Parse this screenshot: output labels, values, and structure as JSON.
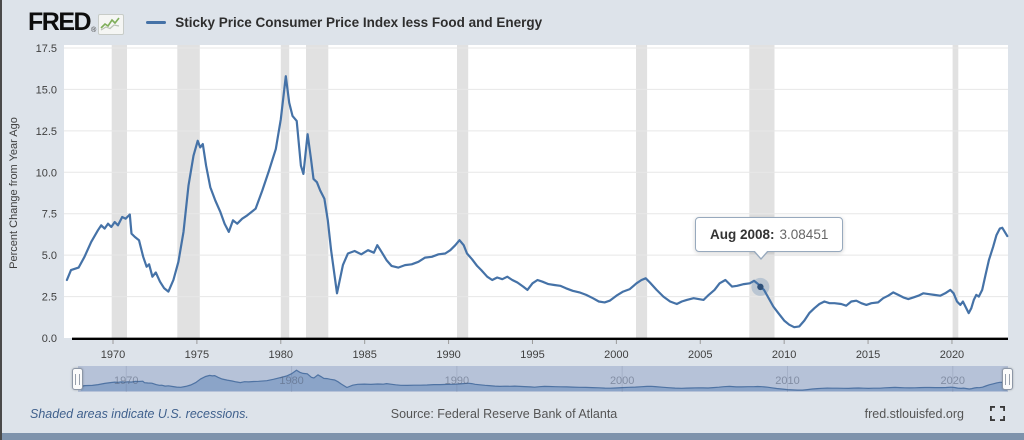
{
  "header": {
    "brand": "FRED",
    "registered_mark": "®",
    "legend_label": "Sticky Price Consumer Price Index less Food and Energy"
  },
  "tooltip": {
    "label": "Aug 2008:",
    "value": "3.08451"
  },
  "footer": {
    "recession_note": "Shaded areas indicate U.S. recessions.",
    "source": "Source: Federal Reserve Bank of Atlanta",
    "site": "fred.stlouisfed.org"
  },
  "colors": {
    "page_bg": "#dde3ea",
    "plot_bg": "#ffffff",
    "series_line": "#4572a7",
    "highlight_dot": "#2d507a",
    "recession_band": "#e1e1e1",
    "gridline": "#e7e7e7",
    "axis_line": "#000000",
    "minimap_bg": "#b6c2d8",
    "minimap_fill": "#8ba4c8",
    "minimap_line": "#4f73a3",
    "link_blue": "#40618d"
  },
  "minimap": {
    "x_labels": [
      1970,
      1980,
      1990,
      2000,
      2010,
      2020
    ]
  },
  "chart_data": {
    "type": "line",
    "title": "Sticky Price Consumer Price Index less Food and Energy",
    "xlabel": "",
    "ylabel": "Percent Change from Year Ago",
    "ylim": [
      0,
      17.5
    ],
    "xlim": [
      1967.08,
      2023.34
    ],
    "y_ticks": [
      0,
      2.5,
      5,
      7.5,
      10,
      12.5,
      15,
      17.5
    ],
    "x_ticks": [
      1970,
      1975,
      1980,
      1985,
      1990,
      1995,
      2000,
      2005,
      2010,
      2015,
      2020
    ],
    "grid": "horizontal",
    "legend_position": "top-header",
    "recessions": [
      [
        1969.92,
        1970.83
      ],
      [
        1973.83,
        1975.17
      ],
      [
        1980.0,
        1980.5
      ],
      [
        1981.5,
        1982.83
      ],
      [
        1990.5,
        1991.17
      ],
      [
        2001.17,
        2001.83
      ],
      [
        2007.92,
        2009.42
      ],
      [
        2020.04,
        2020.38
      ]
    ],
    "highlight": {
      "x": 2008.583,
      "y": 3.08451,
      "date_label": "Aug 2008",
      "value_label": "3.08451"
    },
    "series": [
      {
        "name": "Sticky Price Consumer Price Index less Food and Energy",
        "color": "#4572a7",
        "units": "Percent Change from Year Ago",
        "points": [
          [
            1967.25,
            3.5
          ],
          [
            1967.5,
            4.1
          ],
          [
            1967.95,
            4.25
          ],
          [
            1968.3,
            4.9
          ],
          [
            1968.7,
            5.8
          ],
          [
            1969.1,
            6.5
          ],
          [
            1969.3,
            6.8
          ],
          [
            1969.5,
            6.6
          ],
          [
            1969.7,
            6.9
          ],
          [
            1969.9,
            6.7
          ],
          [
            1970.1,
            7.0
          ],
          [
            1970.3,
            6.8
          ],
          [
            1970.55,
            7.3
          ],
          [
            1970.75,
            7.2
          ],
          [
            1971.0,
            7.45
          ],
          [
            1971.1,
            6.3
          ],
          [
            1971.3,
            6.1
          ],
          [
            1971.55,
            5.9
          ],
          [
            1971.8,
            4.9
          ],
          [
            1972.0,
            4.3
          ],
          [
            1972.15,
            4.45
          ],
          [
            1972.35,
            3.7
          ],
          [
            1972.55,
            3.95
          ],
          [
            1972.8,
            3.4
          ],
          [
            1973.05,
            3.0
          ],
          [
            1973.3,
            2.8
          ],
          [
            1973.6,
            3.5
          ],
          [
            1973.9,
            4.6
          ],
          [
            1974.2,
            6.4
          ],
          [
            1974.5,
            9.2
          ],
          [
            1974.8,
            11.0
          ],
          [
            1975.05,
            11.9
          ],
          [
            1975.2,
            11.5
          ],
          [
            1975.35,
            11.7
          ],
          [
            1975.55,
            10.4
          ],
          [
            1975.8,
            9.1
          ],
          [
            1976.1,
            8.3
          ],
          [
            1976.4,
            7.6
          ],
          [
            1976.65,
            6.9
          ],
          [
            1976.9,
            6.4
          ],
          [
            1977.15,
            7.1
          ],
          [
            1977.4,
            6.9
          ],
          [
            1977.7,
            7.2
          ],
          [
            1978.0,
            7.4
          ],
          [
            1978.5,
            7.8
          ],
          [
            1978.9,
            8.9
          ],
          [
            1979.3,
            10.1
          ],
          [
            1979.7,
            11.4
          ],
          [
            1980.0,
            13.2
          ],
          [
            1980.3,
            15.8
          ],
          [
            1980.5,
            14.2
          ],
          [
            1980.7,
            13.4
          ],
          [
            1980.95,
            13.1
          ],
          [
            1981.2,
            10.4
          ],
          [
            1981.35,
            9.9
          ],
          [
            1981.6,
            12.3
          ],
          [
            1981.8,
            10.8
          ],
          [
            1981.95,
            9.6
          ],
          [
            1982.15,
            9.4
          ],
          [
            1982.35,
            8.9
          ],
          [
            1982.6,
            8.4
          ],
          [
            1982.8,
            7.1
          ],
          [
            1983.0,
            5.3
          ],
          [
            1983.35,
            2.7
          ],
          [
            1983.7,
            4.4
          ],
          [
            1984.0,
            5.1
          ],
          [
            1984.4,
            5.25
          ],
          [
            1984.8,
            5.05
          ],
          [
            1985.2,
            5.3
          ],
          [
            1985.55,
            5.15
          ],
          [
            1985.75,
            5.6
          ],
          [
            1986.0,
            5.2
          ],
          [
            1986.3,
            4.7
          ],
          [
            1986.6,
            4.35
          ],
          [
            1987.0,
            4.25
          ],
          [
            1987.4,
            4.4
          ],
          [
            1987.8,
            4.45
          ],
          [
            1988.2,
            4.6
          ],
          [
            1988.6,
            4.85
          ],
          [
            1989.0,
            4.9
          ],
          [
            1989.4,
            5.05
          ],
          [
            1989.8,
            5.1
          ],
          [
            1990.1,
            5.3
          ],
          [
            1990.4,
            5.6
          ],
          [
            1990.65,
            5.9
          ],
          [
            1990.9,
            5.6
          ],
          [
            1991.1,
            5.1
          ],
          [
            1991.4,
            4.75
          ],
          [
            1991.7,
            4.35
          ],
          [
            1991.95,
            4.1
          ],
          [
            1992.3,
            3.7
          ],
          [
            1992.6,
            3.5
          ],
          [
            1992.9,
            3.65
          ],
          [
            1993.2,
            3.55
          ],
          [
            1993.5,
            3.7
          ],
          [
            1993.8,
            3.5
          ],
          [
            1994.1,
            3.35
          ],
          [
            1994.45,
            3.1
          ],
          [
            1994.7,
            2.9
          ],
          [
            1995.0,
            3.3
          ],
          [
            1995.3,
            3.5
          ],
          [
            1995.6,
            3.4
          ],
          [
            1995.95,
            3.25
          ],
          [
            1996.3,
            3.2
          ],
          [
            1996.65,
            3.15
          ],
          [
            1997.0,
            3.0
          ],
          [
            1997.4,
            2.85
          ],
          [
            1997.8,
            2.75
          ],
          [
            1998.2,
            2.6
          ],
          [
            1998.6,
            2.4
          ],
          [
            1998.95,
            2.2
          ],
          [
            1999.3,
            2.15
          ],
          [
            1999.6,
            2.25
          ],
          [
            2000.0,
            2.55
          ],
          [
            2000.4,
            2.8
          ],
          [
            2000.8,
            2.95
          ],
          [
            2001.2,
            3.3
          ],
          [
            2001.5,
            3.5
          ],
          [
            2001.75,
            3.6
          ],
          [
            2002.0,
            3.35
          ],
          [
            2002.4,
            2.9
          ],
          [
            2002.8,
            2.5
          ],
          [
            2003.2,
            2.2
          ],
          [
            2003.6,
            2.05
          ],
          [
            2003.9,
            2.2
          ],
          [
            2004.2,
            2.3
          ],
          [
            2004.6,
            2.4
          ],
          [
            2004.9,
            2.35
          ],
          [
            2005.2,
            2.3
          ],
          [
            2005.5,
            2.6
          ],
          [
            2005.85,
            2.9
          ],
          [
            2006.15,
            3.3
          ],
          [
            2006.5,
            3.5
          ],
          [
            2006.9,
            3.1
          ],
          [
            2007.2,
            3.15
          ],
          [
            2007.6,
            3.25
          ],
          [
            2007.95,
            3.3
          ],
          [
            2008.2,
            3.45
          ],
          [
            2008.45,
            3.25
          ],
          [
            2008.583,
            3.08451
          ],
          [
            2008.8,
            2.9
          ],
          [
            2009.05,
            2.45
          ],
          [
            2009.35,
            1.9
          ],
          [
            2009.65,
            1.5
          ],
          [
            2010.0,
            1.05
          ],
          [
            2010.3,
            0.8
          ],
          [
            2010.6,
            0.65
          ],
          [
            2010.9,
            0.7
          ],
          [
            2011.2,
            1.05
          ],
          [
            2011.5,
            1.5
          ],
          [
            2011.8,
            1.8
          ],
          [
            2012.1,
            2.05
          ],
          [
            2012.4,
            2.2
          ],
          [
            2012.7,
            2.1
          ],
          [
            2013.0,
            2.1
          ],
          [
            2013.4,
            2.05
          ],
          [
            2013.7,
            1.95
          ],
          [
            2014.0,
            2.2
          ],
          [
            2014.3,
            2.25
          ],
          [
            2014.6,
            2.1
          ],
          [
            2014.9,
            2.0
          ],
          [
            2015.2,
            2.1
          ],
          [
            2015.6,
            2.15
          ],
          [
            2015.9,
            2.4
          ],
          [
            2016.2,
            2.55
          ],
          [
            2016.5,
            2.75
          ],
          [
            2016.8,
            2.6
          ],
          [
            2017.1,
            2.45
          ],
          [
            2017.4,
            2.35
          ],
          [
            2017.7,
            2.45
          ],
          [
            2018.0,
            2.55
          ],
          [
            2018.3,
            2.7
          ],
          [
            2018.6,
            2.65
          ],
          [
            2018.95,
            2.6
          ],
          [
            2019.3,
            2.55
          ],
          [
            2019.6,
            2.7
          ],
          [
            2019.9,
            2.9
          ],
          [
            2020.1,
            2.7
          ],
          [
            2020.3,
            2.2
          ],
          [
            2020.5,
            2.0
          ],
          [
            2020.65,
            2.2
          ],
          [
            2020.8,
            1.9
          ],
          [
            2021.0,
            1.5
          ],
          [
            2021.15,
            1.8
          ],
          [
            2021.3,
            2.3
          ],
          [
            2021.45,
            2.6
          ],
          [
            2021.6,
            2.5
          ],
          [
            2021.8,
            2.9
          ],
          [
            2022.0,
            3.8
          ],
          [
            2022.2,
            4.7
          ],
          [
            2022.45,
            5.5
          ],
          [
            2022.65,
            6.2
          ],
          [
            2022.85,
            6.6
          ],
          [
            2023.0,
            6.65
          ],
          [
            2023.15,
            6.4
          ],
          [
            2023.3,
            6.15
          ]
        ]
      }
    ]
  }
}
